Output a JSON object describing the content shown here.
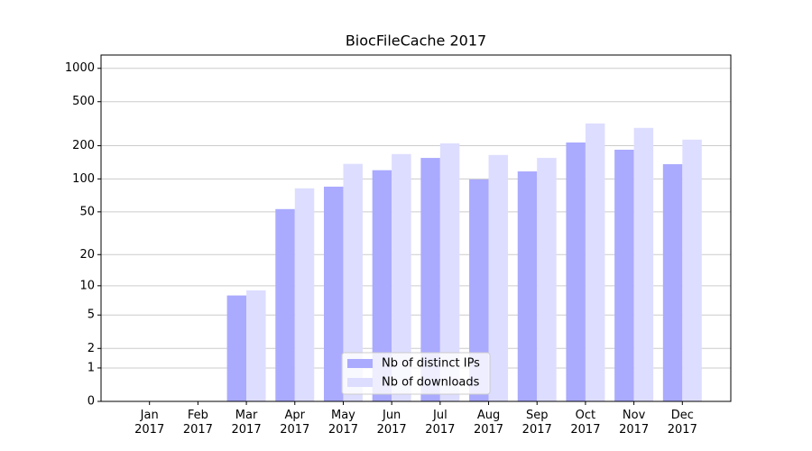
{
  "chart_data": {
    "type": "bar",
    "title": "BiocFileCache 2017",
    "categories": [
      "Jan\n2017",
      "Feb\n2017",
      "Mar\n2017",
      "Apr\n2017",
      "May\n2017",
      "Jun\n2017",
      "Jul\n2017",
      "Aug\n2017",
      "Sep\n2017",
      "Oct\n2017",
      "Nov\n2017",
      "Dec\n2017"
    ],
    "series": [
      {
        "name": "Nb of distinct IPs",
        "color": "#aaaaff",
        "values": [
          0,
          0,
          8,
          53,
          85,
          120,
          155,
          99,
          117,
          214,
          184,
          136
        ]
      },
      {
        "name": "Nb of downloads",
        "color": "#ddddff",
        "values": [
          0,
          0,
          9,
          82,
          137,
          168,
          210,
          165,
          155,
          318,
          290,
          227
        ]
      }
    ],
    "yscale": "log1p",
    "ylim": [
      0,
      1318
    ],
    "yticks": [
      0,
      1,
      2,
      5,
      10,
      20,
      50,
      100,
      200,
      500,
      1000
    ],
    "grid": true,
    "legend": "lower center"
  }
}
